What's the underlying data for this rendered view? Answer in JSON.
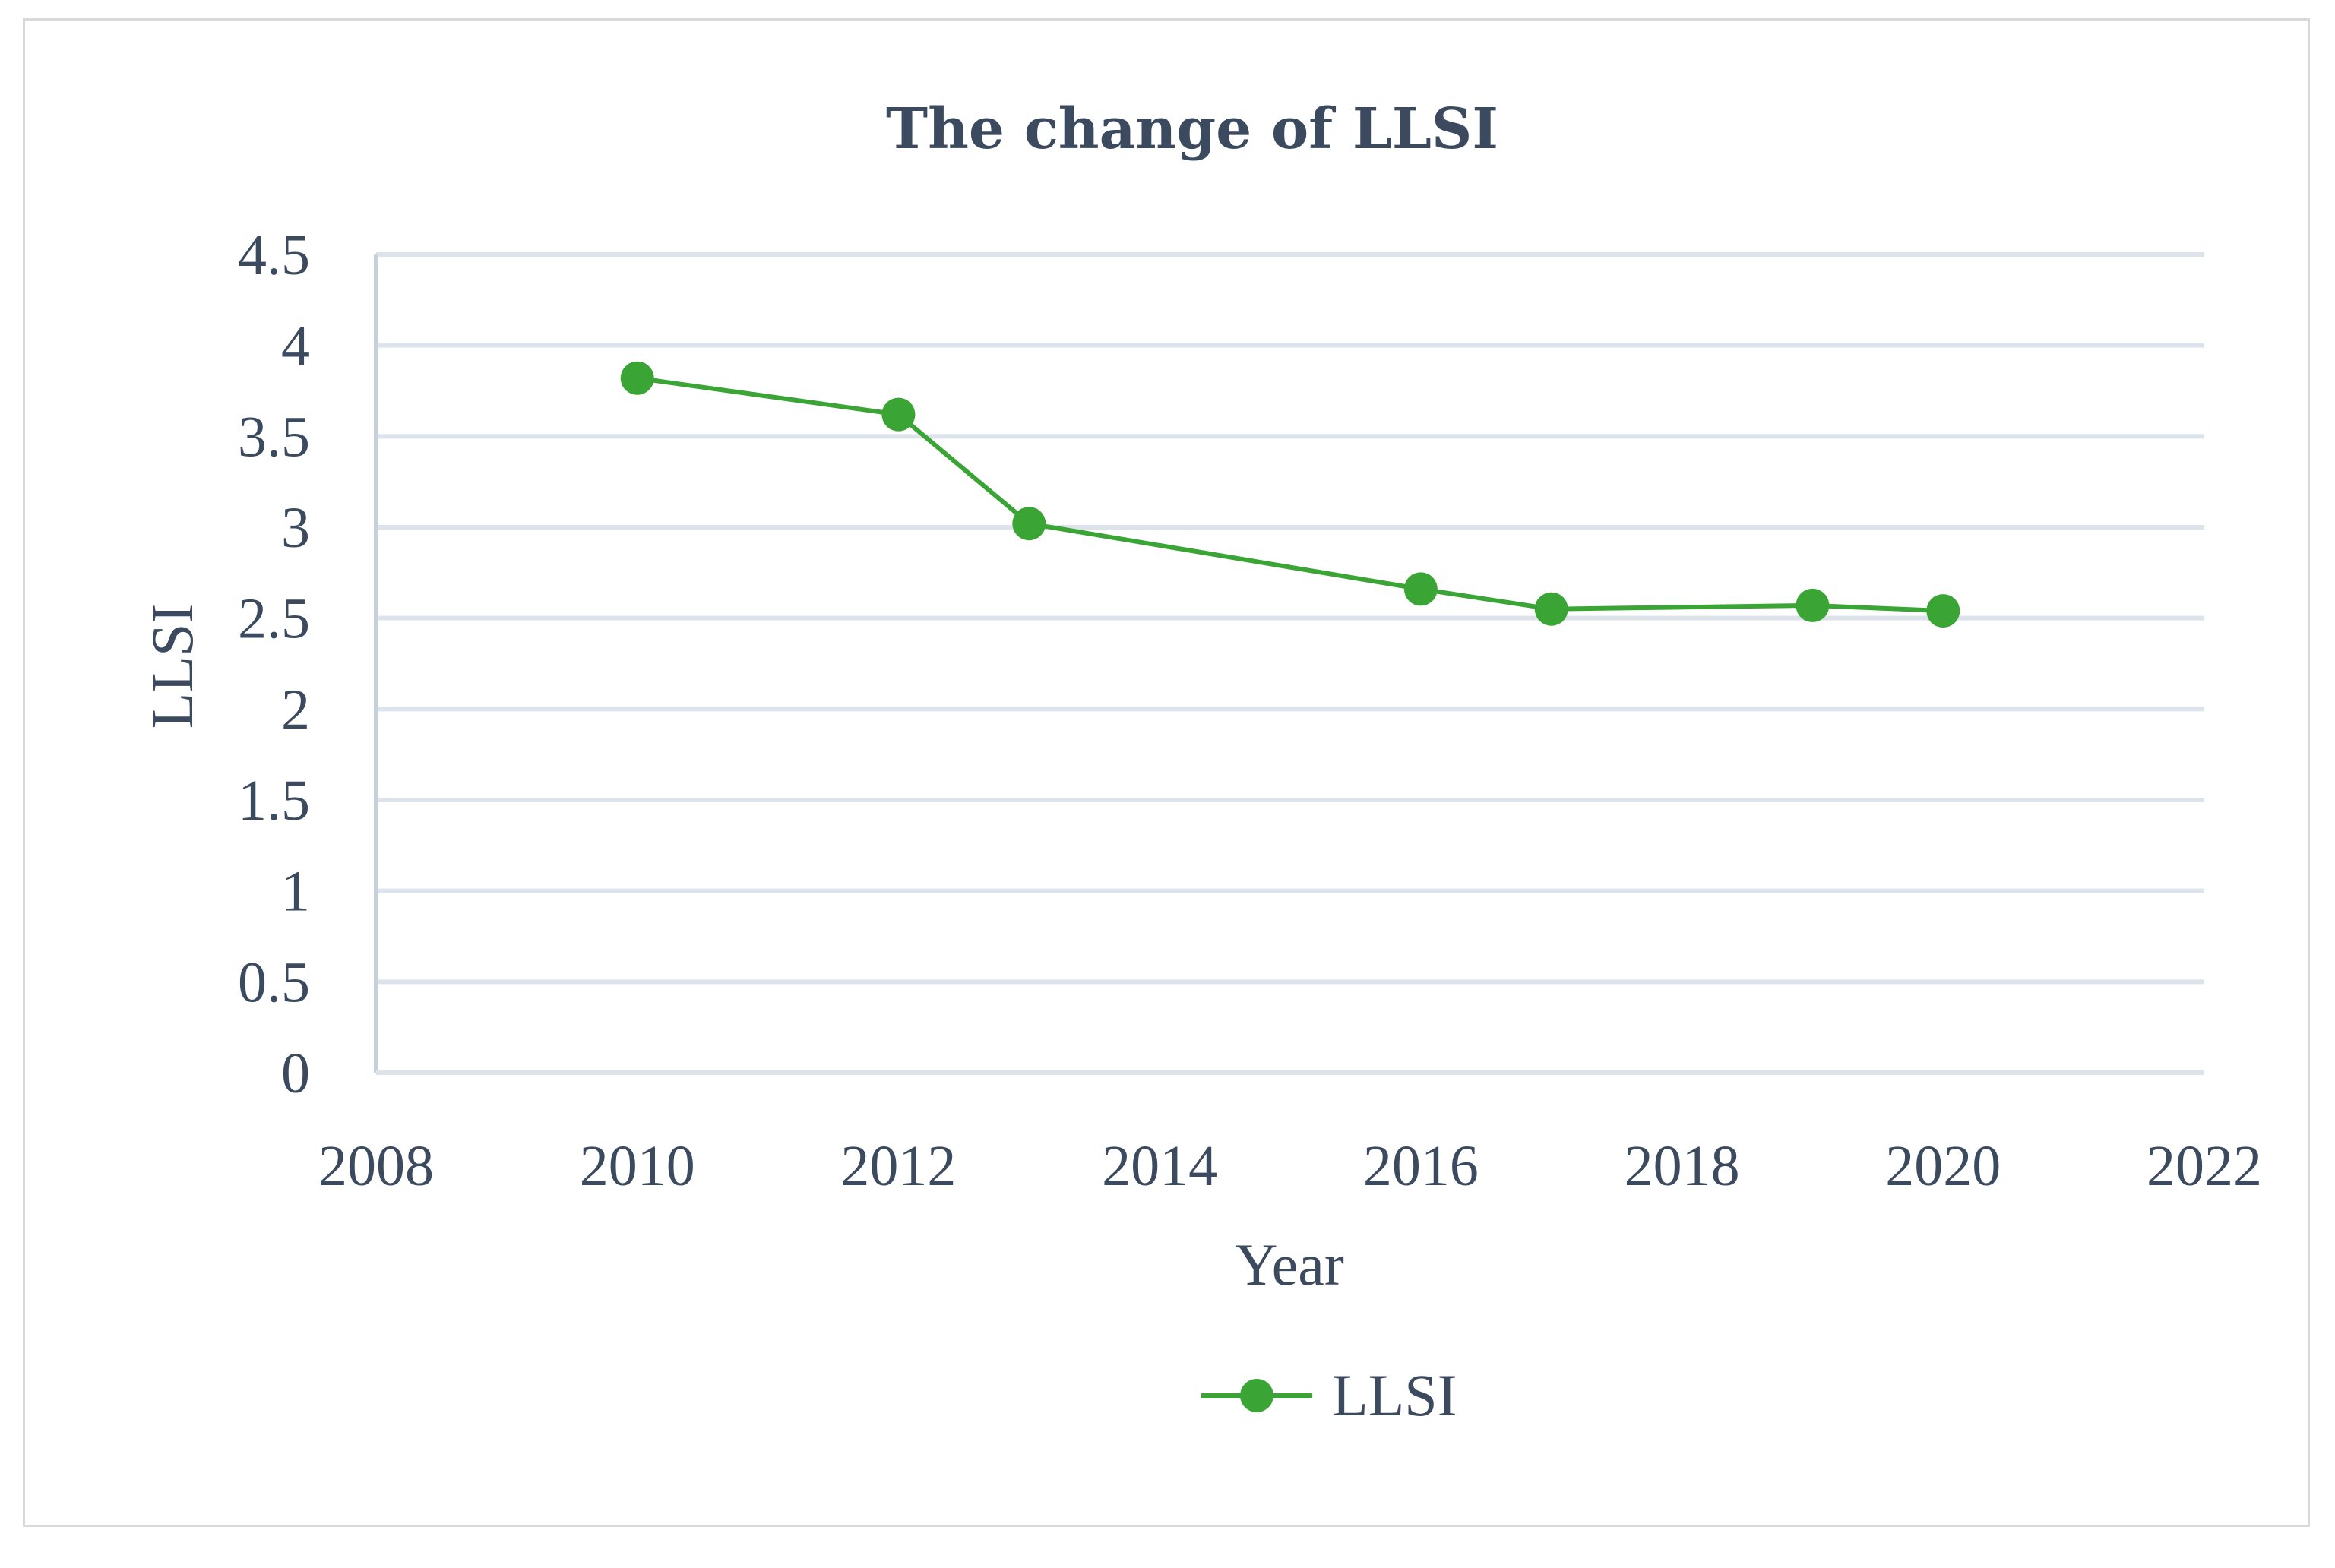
{
  "chart_data": {
    "type": "line",
    "title": "The change of LLSI",
    "xlabel": "Year",
    "ylabel": "LLSI",
    "xlim": [
      2008,
      2022
    ],
    "ylim": [
      0,
      4.5
    ],
    "x_ticks": [
      2008,
      2010,
      2012,
      2014,
      2016,
      2018,
      2020,
      2022
    ],
    "y_ticks": [
      "0",
      "0.5",
      "1",
      "1.5",
      "2",
      "2.5",
      "3",
      "3.5",
      "4",
      "4.5"
    ],
    "grid": true,
    "legend_position": "bottom",
    "series": [
      {
        "name": "LLSI",
        "color": "#3aa535",
        "x": [
          2010,
          2012,
          2013,
          2016,
          2017,
          2019,
          2020
        ],
        "values": [
          3.82,
          3.62,
          3.02,
          2.66,
          2.55,
          2.57,
          2.54
        ]
      }
    ]
  }
}
